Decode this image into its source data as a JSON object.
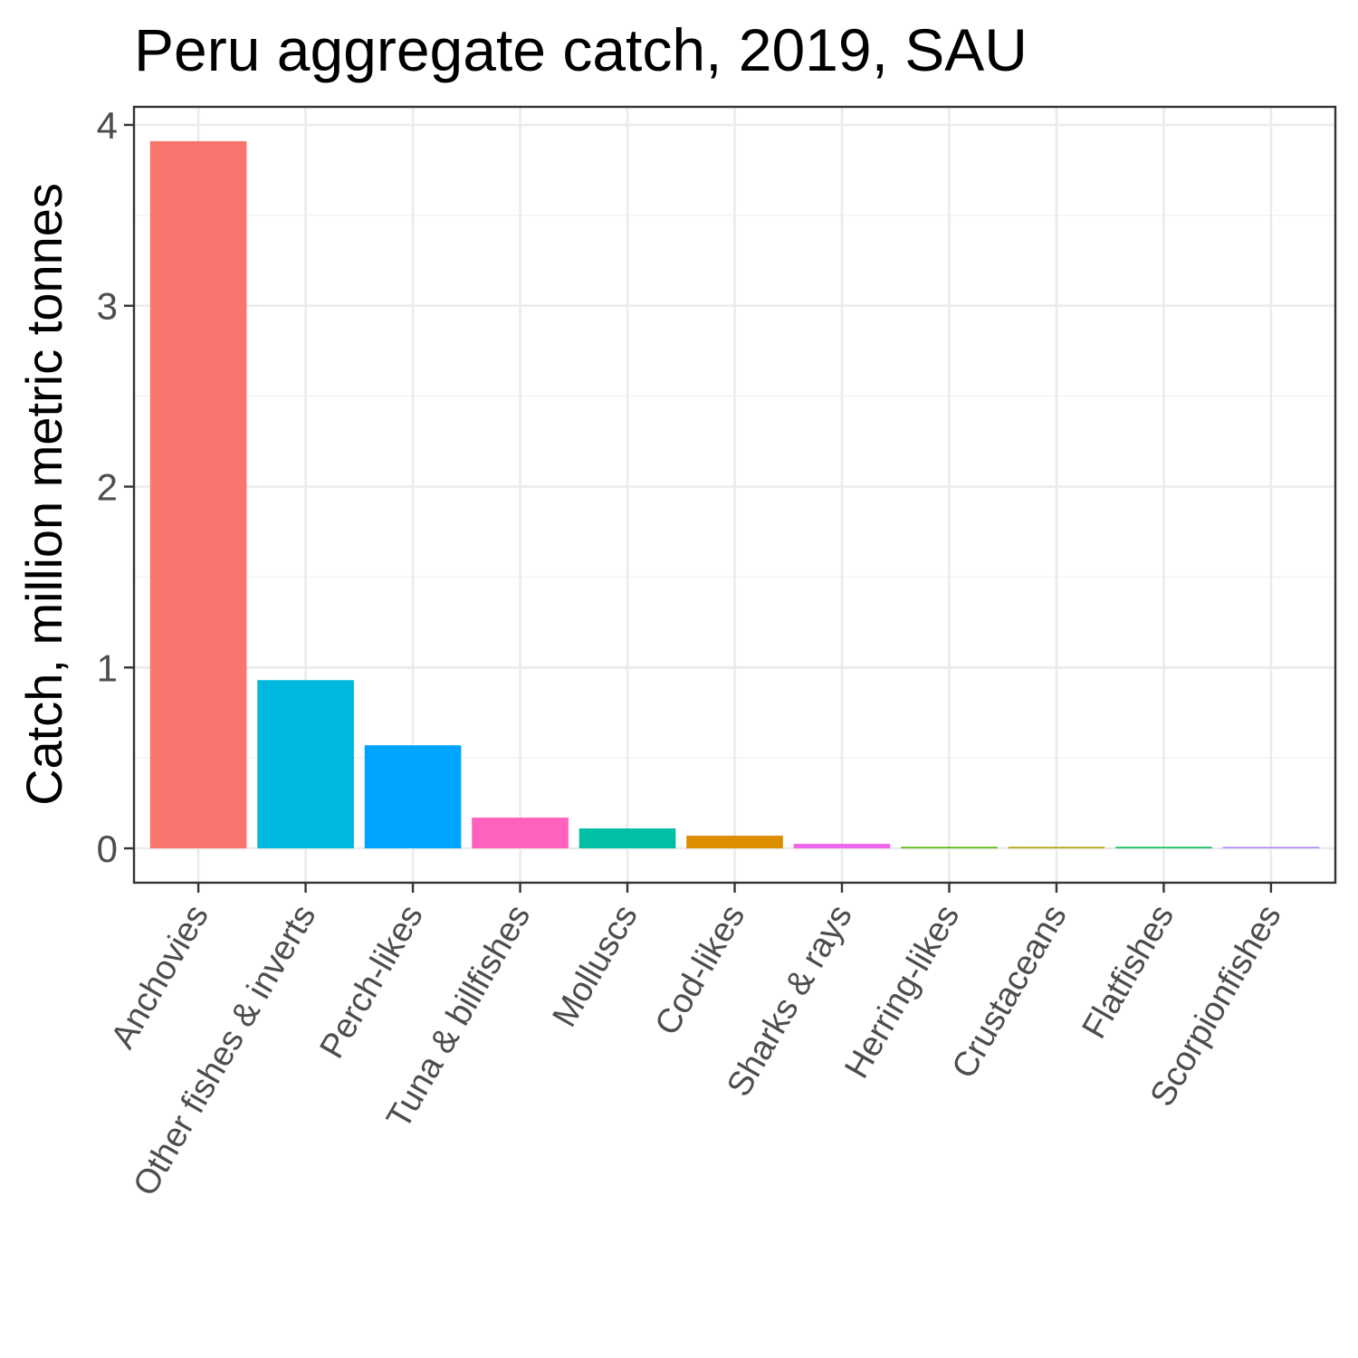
{
  "chart_data": {
    "type": "bar",
    "title": "Peru aggregate catch, 2019, SAU",
    "xlabel": "",
    "ylabel": "Catch, million metric tonnes",
    "categories": [
      "Anchovies",
      "Other fishes & inverts",
      "Perch-likes",
      "Tuna & billfishes",
      "Molluscs",
      "Cod-likes",
      "Sharks & rays",
      "Herring-likes",
      "Crustaceans",
      "Flatfishes",
      "Scorpionfishes"
    ],
    "values": [
      3.91,
      0.93,
      0.57,
      0.17,
      0.11,
      0.07,
      0.025,
      0.004,
      0.003,
      0.003,
      0.002
    ],
    "colors": [
      "#F8766D",
      "#00B8DE",
      "#00A5FF",
      "#FF62BC",
      "#00BFA4",
      "#DB8E00",
      "#F066EA",
      "#53B400",
      "#AEA200",
      "#00BB4E",
      "#B385FF"
    ],
    "yticks": [
      0,
      1,
      2,
      3,
      4
    ],
    "ylim": [
      -0.19,
      4.1
    ],
    "grid": true,
    "legend": "none"
  }
}
